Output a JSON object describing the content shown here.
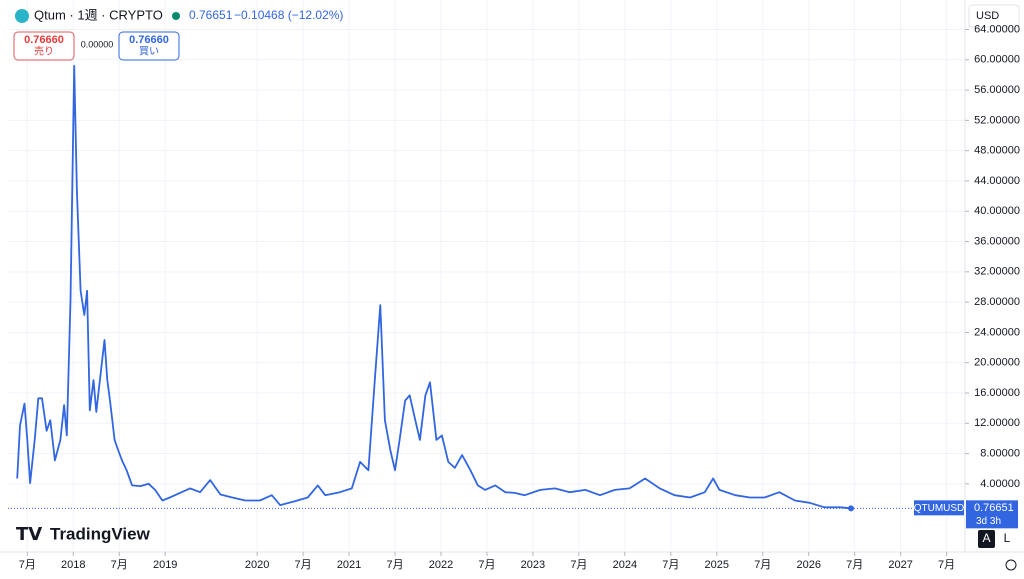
{
  "chart_data": {
    "type": "line",
    "title": "Qtum · 1週 · CRYPTO",
    "last_price": "0.76651",
    "change": "−0.10468 (−12.02%)",
    "sell": {
      "price": "0.76660",
      "label": "売り"
    },
    "spread": "0.00000",
    "buy": {
      "price": "0.76660",
      "label": "買い"
    },
    "currency": "USD",
    "countdown": "3d 3h",
    "scale_buttons": [
      "A",
      "L"
    ],
    "brand": "TradingView",
    "grid": true,
    "x": [
      2017.39,
      2017.42,
      2017.47,
      2017.5,
      2017.53,
      2017.58,
      2017.62,
      2017.66,
      2017.71,
      2017.75,
      2017.8,
      2017.86,
      2017.9,
      2017.93,
      2017.97,
      2018.01,
      2018.04,
      2018.08,
      2018.12,
      2018.15,
      2018.18,
      2018.22,
      2018.25,
      2018.29,
      2018.34,
      2018.37,
      2018.4,
      2018.45,
      2018.49,
      2018.53,
      2018.58,
      2018.64,
      2018.73,
      2018.82,
      2018.89,
      2018.97,
      2019.05,
      2019.16,
      2019.27,
      2019.38,
      2019.49,
      2019.6,
      2019.73,
      2019.87,
      2020.03,
      2020.16,
      2020.25,
      2020.41,
      2020.55,
      2020.66,
      2020.74,
      2020.9,
      2021.03,
      2021.12,
      2021.21,
      2021.28,
      2021.34,
      2021.39,
      2021.45,
      2021.5,
      2021.55,
      2021.61,
      2021.66,
      2021.72,
      2021.77,
      2021.83,
      2021.88,
      2021.95,
      2022.01,
      2022.08,
      2022.15,
      2022.23,
      2022.32,
      2022.4,
      2022.48,
      2022.59,
      2022.7,
      2022.8,
      2022.91,
      2023.08,
      2023.24,
      2023.4,
      2023.57,
      2023.73,
      2023.89,
      2024.05,
      2024.22,
      2024.38,
      2024.54,
      2024.71,
      2024.87,
      2024.96,
      2025.03,
      2025.2,
      2025.36,
      2025.52,
      2025.68,
      2025.85,
      2026.01,
      2026.17,
      2026.34,
      2026.46
    ],
    "series": [
      {
        "name": "QTUMUSD",
        "color": "#3266e0",
        "values": [
          4.7,
          11.7,
          14.6,
          9.8,
          4.1,
          9.8,
          15.3,
          15.3,
          11,
          12.4,
          7.1,
          9.8,
          14.4,
          10.4,
          28.2,
          59.2,
          42.7,
          29.5,
          26.3,
          29.5,
          13.7,
          17.7,
          13.5,
          17.7,
          23,
          17.7,
          15,
          9.8,
          8.4,
          7.1,
          5.8,
          3.8,
          3.7,
          4,
          3.2,
          1.8,
          2.2,
          2.8,
          3.4,
          2.9,
          4.5,
          2.6,
          2.2,
          1.8,
          1.8,
          2.5,
          1.2,
          1.7,
          2.2,
          3.8,
          2.5,
          2.9,
          3.4,
          6.9,
          5.8,
          17.7,
          27.6,
          12.4,
          8.4,
          5.8,
          9.8,
          15,
          15.7,
          12.4,
          9.8,
          15.7,
          17.4,
          9.8,
          10.4,
          6.9,
          6.1,
          7.8,
          5.8,
          3.8,
          3.2,
          3.8,
          2.9,
          2.8,
          2.5,
          3.2,
          3.4,
          2.9,
          3.2,
          2.5,
          3.2,
          3.4,
          4.7,
          3.4,
          2.5,
          2.2,
          2.9,
          4.7,
          3.2,
          2.5,
          2.2,
          2.2,
          2.9,
          1.8,
          1.5,
          0.9,
          0.9,
          0.76651
        ]
      }
    ],
    "xlim": [
      2017.29,
      2027.7
    ],
    "xticks": [
      {
        "value": 2017.5,
        "label": "7月"
      },
      2018,
      {
        "value": 2018.5,
        "label": "7月"
      },
      2019,
      2020,
      {
        "value": 2020.5,
        "label": "7月"
      },
      2021,
      {
        "value": 2021.5,
        "label": "7月"
      },
      2022,
      {
        "value": 2022.5,
        "label": "7月"
      },
      2023,
      {
        "value": 2023.5,
        "label": "7月"
      },
      2024,
      {
        "value": 2024.5,
        "label": "7月"
      },
      2025,
      {
        "value": 2025.5,
        "label": "7月"
      },
      2026,
      {
        "value": 2026.5,
        "label": "7月"
      },
      2027,
      {
        "value": 2027.5,
        "label": "7月"
      }
    ],
    "ylim": [
      -5,
      64.2
    ],
    "yticks": [
      {
        "value": 4,
        "label": "4.00000"
      },
      {
        "value": 8,
        "label": "8.00000"
      },
      {
        "value": 12,
        "label": "12.00000"
      },
      {
        "value": 16,
        "label": "16.00000"
      },
      {
        "value": 20,
        "label": "20.00000"
      },
      {
        "value": 24,
        "label": "24.00000"
      },
      {
        "value": 28,
        "label": "28.00000"
      },
      {
        "value": 32,
        "label": "32.00000"
      },
      {
        "value": 36,
        "label": "36.00000"
      },
      {
        "value": 40,
        "label": "40.00000"
      },
      {
        "value": 44,
        "label": "44.00000"
      },
      {
        "value": 48,
        "label": "48.00000"
      },
      {
        "value": 52,
        "label": "52.00000"
      },
      {
        "value": 56,
        "label": "56.00000"
      },
      {
        "value": 60,
        "label": "60.00000"
      },
      {
        "value": 64,
        "label": "64.00000"
      }
    ]
  }
}
